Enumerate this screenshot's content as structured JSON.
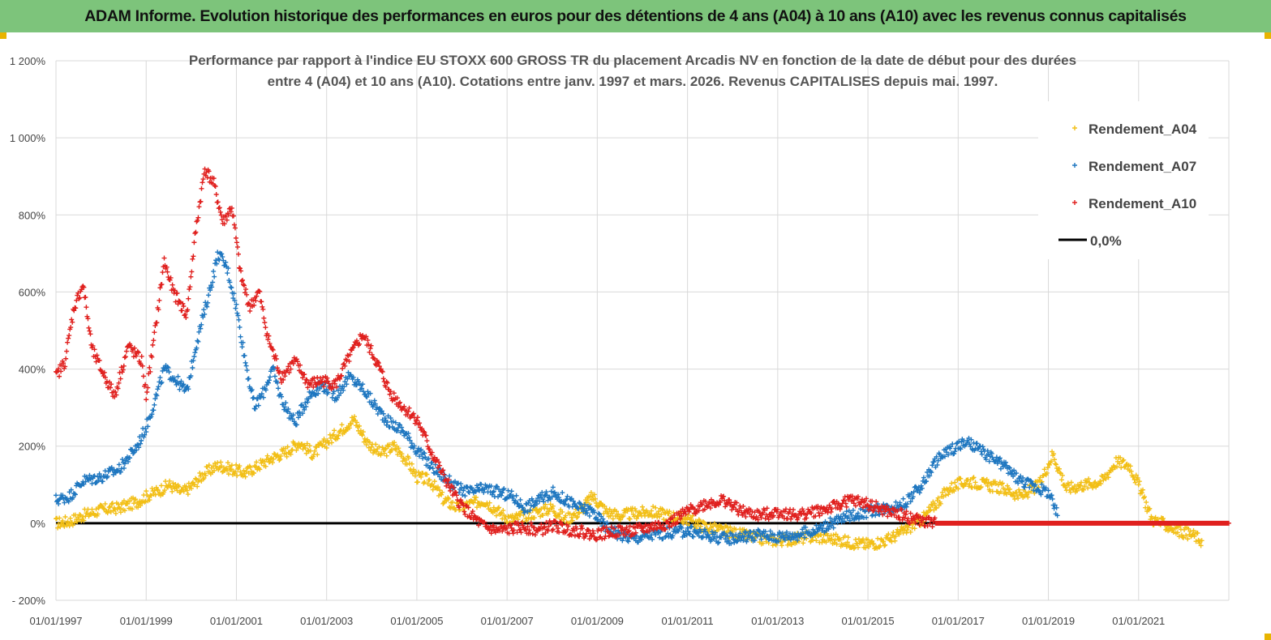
{
  "header": {
    "title": "ADAM Informe. Evolution historique des performances en euros pour des détentions de 4 ans (A04) à 10 ans (A10) avec les revenus connus capitalisés"
  },
  "colors": {
    "banner": "#7dc47b",
    "a04": "#f2bf17",
    "a07": "#1f77c0",
    "a10": "#e0201e",
    "zero": "#000000",
    "grid": "#d9d9d9"
  },
  "chart_data": {
    "type": "scatter",
    "title_lines": [
      "Performance par rapport à l'indice EU STOXX 600 GROSS TR  du placement Arcadis NV en fonction de la date de début pour des durées",
      "entre 4 (A04) et 10 ans (A10). Cotations entre janv. 1997 et mars. 2026. Revenus CAPITALISES depuis mai. 1997."
    ],
    "y_ticks": [
      "- 200%",
      "0%",
      "200%",
      "400%",
      "600%",
      "800%",
      "1 000%",
      "1 200%"
    ],
    "y_tick_values": [
      -200,
      0,
      200,
      400,
      600,
      800,
      1000,
      1200
    ],
    "ylim": [
      -200,
      1200
    ],
    "x_ticks": [
      "01/01/1997",
      "01/01/1999",
      "01/01/2001",
      "01/01/2003",
      "01/01/2005",
      "01/01/2007",
      "01/01/2009",
      "01/01/2011",
      "01/01/2013",
      "01/01/2015",
      "01/01/2017",
      "01/01/2019",
      "01/01/2021"
    ],
    "x_tick_years": [
      1997,
      1999,
      2001,
      2003,
      2005,
      2007,
      2009,
      2011,
      2013,
      2015,
      2017,
      2019,
      2021
    ],
    "xlim": [
      1997,
      2023
    ],
    "grid": true,
    "legend_position": "top-right",
    "series": [
      {
        "name": "Rendement_A04",
        "color": "#f2bf17",
        "points": [
          [
            1997.0,
            0
          ],
          [
            1997.3,
            5
          ],
          [
            1997.6,
            20
          ],
          [
            1998.0,
            35
          ],
          [
            1998.4,
            40
          ],
          [
            1998.8,
            55
          ],
          [
            1999.0,
            70
          ],
          [
            1999.3,
            85
          ],
          [
            1999.5,
            100
          ],
          [
            1999.8,
            80
          ],
          [
            2000.0,
            95
          ],
          [
            2000.3,
            130
          ],
          [
            2000.6,
            150
          ],
          [
            2000.9,
            140
          ],
          [
            2001.2,
            130
          ],
          [
            2001.5,
            150
          ],
          [
            2001.8,
            170
          ],
          [
            2002.1,
            185
          ],
          [
            2002.4,
            210
          ],
          [
            2002.7,
            180
          ],
          [
            2003.0,
            210
          ],
          [
            2003.3,
            240
          ],
          [
            2003.6,
            270
          ],
          [
            2003.9,
            210
          ],
          [
            2004.2,
            180
          ],
          [
            2004.5,
            200
          ],
          [
            2004.8,
            160
          ],
          [
            2005.0,
            120
          ],
          [
            2005.3,
            110
          ],
          [
            2005.6,
            60
          ],
          [
            2005.9,
            40
          ],
          [
            2006.2,
            50
          ],
          [
            2006.5,
            60
          ],
          [
            2006.8,
            30
          ],
          [
            2007.1,
            10
          ],
          [
            2007.4,
            20
          ],
          [
            2007.7,
            30
          ],
          [
            2008.0,
            40
          ],
          [
            2008.3,
            10
          ],
          [
            2008.6,
            30
          ],
          [
            2008.9,
            70
          ],
          [
            2009.2,
            30
          ],
          [
            2009.5,
            20
          ],
          [
            2009.8,
            25
          ],
          [
            2010.2,
            30
          ],
          [
            2010.6,
            20
          ],
          [
            2011.0,
            10
          ],
          [
            2011.4,
            -10
          ],
          [
            2011.8,
            -20
          ],
          [
            2012.2,
            -30
          ],
          [
            2012.6,
            -40
          ],
          [
            2013.0,
            -45
          ],
          [
            2013.4,
            -40
          ],
          [
            2013.8,
            -35
          ],
          [
            2014.2,
            -40
          ],
          [
            2014.6,
            -50
          ],
          [
            2015.0,
            -55
          ],
          [
            2015.4,
            -45
          ],
          [
            2015.8,
            -20
          ],
          [
            2016.2,
            10
          ],
          [
            2016.5,
            50
          ],
          [
            2016.8,
            90
          ],
          [
            2017.2,
            110
          ],
          [
            2017.6,
            100
          ],
          [
            2018.0,
            90
          ],
          [
            2018.4,
            70
          ],
          [
            2018.8,
            100
          ],
          [
            2019.1,
            180
          ],
          [
            2019.4,
            90
          ],
          [
            2019.8,
            100
          ],
          [
            2020.2,
            110
          ],
          [
            2020.5,
            160
          ],
          [
            2020.8,
            150
          ],
          [
            2021.0,
            100
          ],
          [
            2021.3,
            10
          ],
          [
            2021.6,
            -5
          ],
          [
            2021.9,
            -20
          ],
          [
            2022.2,
            -30
          ],
          [
            2022.4,
            -45
          ]
        ]
      },
      {
        "name": "Rendement_A07",
        "color": "#1f77c0",
        "points": [
          [
            1997.0,
            60
          ],
          [
            1997.3,
            70
          ],
          [
            1997.6,
            110
          ],
          [
            1998.0,
            120
          ],
          [
            1998.4,
            140
          ],
          [
            1998.8,
            200
          ],
          [
            1999.0,
            250
          ],
          [
            1999.2,
            320
          ],
          [
            1999.4,
            400
          ],
          [
            1999.6,
            380
          ],
          [
            1999.9,
            340
          ],
          [
            2000.1,
            460
          ],
          [
            2000.4,
            600
          ],
          [
            2000.6,
            700
          ],
          [
            2000.8,
            660
          ],
          [
            2001.0,
            560
          ],
          [
            2001.2,
            420
          ],
          [
            2001.4,
            300
          ],
          [
            2001.6,
            340
          ],
          [
            2001.8,
            400
          ],
          [
            2002.0,
            320
          ],
          [
            2002.3,
            260
          ],
          [
            2002.6,
            330
          ],
          [
            2002.9,
            360
          ],
          [
            2003.2,
            330
          ],
          [
            2003.5,
            380
          ],
          [
            2003.8,
            350
          ],
          [
            2004.1,
            300
          ],
          [
            2004.4,
            260
          ],
          [
            2004.7,
            240
          ],
          [
            2005.0,
            190
          ],
          [
            2005.3,
            150
          ],
          [
            2005.6,
            120
          ],
          [
            2005.9,
            90
          ],
          [
            2006.2,
            80
          ],
          [
            2006.5,
            90
          ],
          [
            2006.8,
            80
          ],
          [
            2007.1,
            70
          ],
          [
            2007.4,
            40
          ],
          [
            2007.7,
            60
          ],
          [
            2008.0,
            80
          ],
          [
            2008.3,
            60
          ],
          [
            2008.6,
            40
          ],
          [
            2008.9,
            30
          ],
          [
            2009.2,
            -10
          ],
          [
            2009.5,
            -30
          ],
          [
            2009.8,
            -40
          ],
          [
            2010.2,
            -30
          ],
          [
            2010.6,
            -25
          ],
          [
            2011.0,
            -20
          ],
          [
            2011.4,
            -30
          ],
          [
            2011.8,
            -40
          ],
          [
            2012.2,
            -35
          ],
          [
            2012.6,
            -30
          ],
          [
            2013.0,
            -35
          ],
          [
            2013.4,
            -30
          ],
          [
            2013.8,
            -20
          ],
          [
            2014.2,
            0
          ],
          [
            2014.6,
            20
          ],
          [
            2015.0,
            30
          ],
          [
            2015.4,
            40
          ],
          [
            2015.8,
            50
          ],
          [
            2016.2,
            100
          ],
          [
            2016.5,
            160
          ],
          [
            2016.8,
            190
          ],
          [
            2017.2,
            210
          ],
          [
            2017.6,
            180
          ],
          [
            2018.0,
            150
          ],
          [
            2018.4,
            110
          ],
          [
            2018.8,
            90
          ],
          [
            2019.0,
            80
          ],
          [
            2019.2,
            20
          ]
        ]
      },
      {
        "name": "Rendement_A10",
        "color": "#e0201e",
        "points": [
          [
            1997.0,
            380
          ],
          [
            1997.2,
            420
          ],
          [
            1997.4,
            560
          ],
          [
            1997.6,
            620
          ],
          [
            1997.8,
            450
          ],
          [
            1998.0,
            400
          ],
          [
            1998.3,
            330
          ],
          [
            1998.6,
            460
          ],
          [
            1998.9,
            420
          ],
          [
            1999.0,
            330
          ],
          [
            1999.2,
            500
          ],
          [
            1999.4,
            680
          ],
          [
            1999.6,
            600
          ],
          [
            1999.9,
            540
          ],
          [
            2000.1,
            760
          ],
          [
            2000.3,
            920
          ],
          [
            2000.5,
            880
          ],
          [
            2000.7,
            780
          ],
          [
            2000.9,
            820
          ],
          [
            2001.1,
            640
          ],
          [
            2001.3,
            560
          ],
          [
            2001.5,
            600
          ],
          [
            2001.7,
            480
          ],
          [
            2002.0,
            380
          ],
          [
            2002.3,
            420
          ],
          [
            2002.6,
            360
          ],
          [
            2002.9,
            370
          ],
          [
            2003.2,
            360
          ],
          [
            2003.5,
            430
          ],
          [
            2003.8,
            490
          ],
          [
            2004.1,
            420
          ],
          [
            2004.4,
            340
          ],
          [
            2004.7,
            300
          ],
          [
            2005.0,
            270
          ],
          [
            2005.3,
            190
          ],
          [
            2005.6,
            120
          ],
          [
            2005.9,
            60
          ],
          [
            2006.2,
            20
          ],
          [
            2006.5,
            -10
          ],
          [
            2006.8,
            -20
          ],
          [
            2007.1,
            -15
          ],
          [
            2007.4,
            -10
          ],
          [
            2007.7,
            -20
          ],
          [
            2008.0,
            -5
          ],
          [
            2008.3,
            -15
          ],
          [
            2008.6,
            -20
          ],
          [
            2008.9,
            -30
          ],
          [
            2009.2,
            -25
          ],
          [
            2009.5,
            -20
          ],
          [
            2009.8,
            -20
          ],
          [
            2010.2,
            -10
          ],
          [
            2010.6,
            0
          ],
          [
            2011.0,
            30
          ],
          [
            2011.4,
            50
          ],
          [
            2011.8,
            60
          ],
          [
            2012.2,
            30
          ],
          [
            2012.6,
            20
          ],
          [
            2013.0,
            30
          ],
          [
            2013.4,
            20
          ],
          [
            2013.8,
            30
          ],
          [
            2014.2,
            40
          ],
          [
            2014.6,
            60
          ],
          [
            2015.0,
            50
          ],
          [
            2015.4,
            30
          ],
          [
            2015.8,
            20
          ],
          [
            2016.0,
            10
          ],
          [
            2016.5,
            0
          ],
          [
            2017.5,
            0
          ],
          [
            2018.5,
            0
          ],
          [
            2019.5,
            0
          ],
          [
            2020.5,
            0
          ],
          [
            2021.5,
            0
          ],
          [
            2022.5,
            0
          ],
          [
            2023.0,
            0
          ]
        ]
      }
    ],
    "zero_line": {
      "label": "0,0%",
      "value": 0,
      "x_from": 1997.0,
      "x_to": 2023.0
    },
    "legend": [
      "Rendement_A04",
      "Rendement_A07",
      "Rendement_A10",
      "0,0%"
    ]
  }
}
